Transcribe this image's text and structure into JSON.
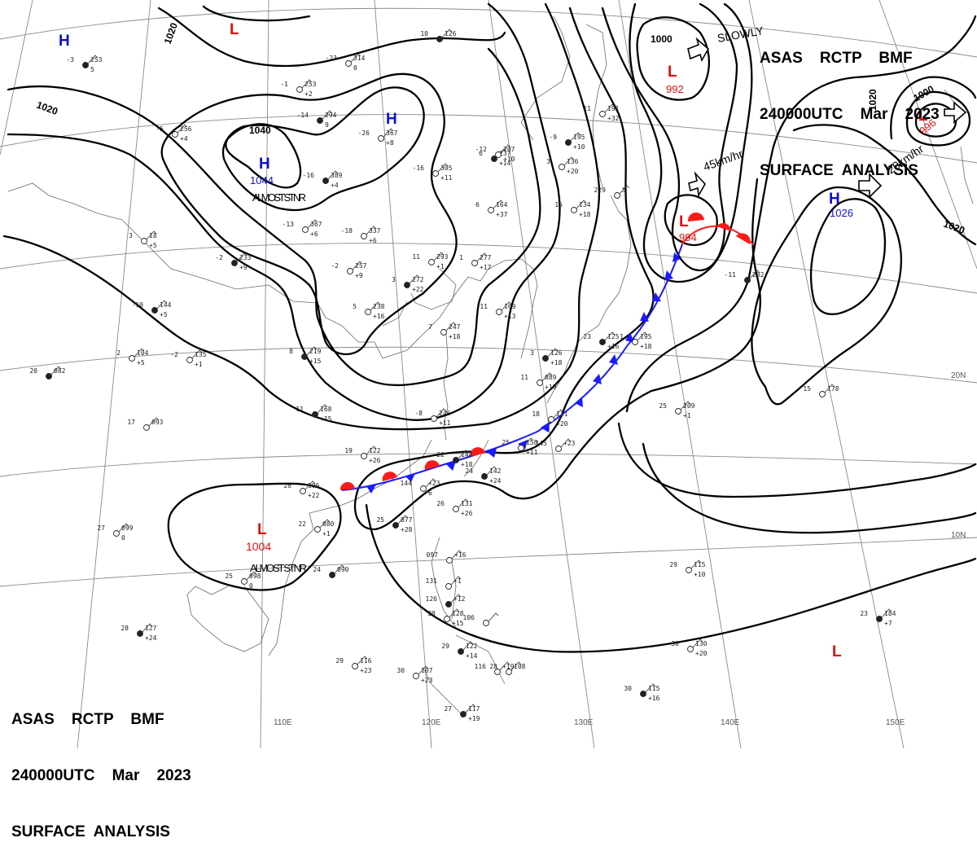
{
  "header_top": {
    "line1": "ASAS    RCTP    BMF",
    "line2": "240000UTC    Mar    2023",
    "line3": "SURFACE  ANALYSIS"
  },
  "header_bottom": {
    "line1": "ASAS    RCTP    BMF",
    "line2": "240000UTC    Mar    2023",
    "line3": "SURFACE  ANALYSIS"
  },
  "colors": {
    "high": "#1010d0",
    "low": "#e01010",
    "isobar": "#000000",
    "grid": "#888888",
    "coast": "#666666",
    "cold_front": "#1a1aff",
    "warm_front": "#ff1a1a"
  },
  "grid_labels": {
    "lon": [
      "110E",
      "120E",
      "130E",
      "140E",
      "150E"
    ],
    "lat": [
      "10N",
      "20N"
    ]
  },
  "isobar_labels": [
    "1020",
    "1020",
    "1040",
    "1000",
    "1020",
    "1000",
    "1020"
  ],
  "pressure_systems": [
    {
      "type": "H",
      "value": "1044",
      "note": "ALMOST STNR"
    },
    {
      "type": "H",
      "value": ""
    },
    {
      "type": "H",
      "value": ""
    },
    {
      "type": "H",
      "value": "1026"
    },
    {
      "type": "L",
      "value": ""
    },
    {
      "type": "L",
      "value": "992"
    },
    {
      "type": "L",
      "value": "996"
    },
    {
      "type": "L",
      "value": "994"
    },
    {
      "type": "L",
      "value": "1004",
      "note": "ALMOST STNR"
    },
    {
      "type": "L",
      "value": ""
    }
  ],
  "motions": [
    "SLOWLY",
    "45km/hr",
    "20km/hr"
  ],
  "stations": [
    [
      "-3",
      "253",
      "5"
    ],
    [
      "-5",
      "256",
      "+4"
    ],
    [
      "-1",
      "253",
      "+2"
    ],
    [
      "-14",
      "294",
      "9"
    ],
    [
      "-23",
      "314",
      "0"
    ],
    [
      "-26",
      "367",
      "+8"
    ],
    [
      "-16",
      "389",
      "+4"
    ],
    [
      "-13",
      "367",
      "+6"
    ],
    [
      "-18",
      "337",
      "+6"
    ],
    [
      "-2",
      "233",
      "+9"
    ],
    [
      "-2",
      "257",
      "+9"
    ],
    [
      "3",
      "18",
      "+5"
    ],
    [
      "-10",
      "144",
      "+5"
    ],
    [
      "2",
      "104",
      "+5"
    ],
    [
      "-2",
      "135",
      "+1"
    ],
    [
      "20",
      "082",
      ""
    ],
    [
      "17",
      "093",
      ""
    ],
    [
      "5",
      "238",
      "+16"
    ],
    [
      "8",
      "219",
      "+15"
    ],
    [
      "11",
      "293",
      "+1"
    ],
    [
      "1",
      "277",
      "+17"
    ],
    [
      "3",
      "272",
      "+22"
    ],
    [
      "7",
      "247",
      "+18"
    ],
    [
      "-16",
      "305",
      "+11"
    ],
    [
      "6",
      "237",
      "+14"
    ],
    [
      "6",
      "164",
      "+37"
    ],
    [
      "11",
      "169",
      "+13"
    ],
    [
      "11",
      "168",
      "+15"
    ],
    [
      "-8",
      "246",
      "+11"
    ],
    [
      "-12",
      "207",
      "+10"
    ],
    [
      "-9",
      "195",
      "+10"
    ],
    [
      "3",
      "136",
      "+20"
    ],
    [
      "15",
      "134",
      "+18"
    ],
    [
      "3",
      "126",
      "+18"
    ],
    [
      "11",
      "089",
      "+19"
    ],
    [
      "1",
      "195",
      "+18"
    ],
    [
      "23",
      "125",
      "+16"
    ],
    [
      "18",
      "131",
      "+20"
    ],
    [
      "19",
      "122",
      "+26"
    ],
    [
      "22",
      "144",
      "+18"
    ],
    [
      "25",
      "158",
      "+11"
    ],
    [
      "145",
      "+23",
      ""
    ],
    [
      "24",
      "142",
      "+24"
    ],
    [
      "144",
      "+23",
      "6"
    ],
    [
      "26",
      "131",
      "+26"
    ],
    [
      "25",
      "077",
      "+28"
    ],
    [
      "22",
      "080",
      "+1"
    ],
    [
      "26",
      "106",
      "+22"
    ],
    [
      "24",
      "090",
      ""
    ],
    [
      "27",
      "099",
      "0"
    ],
    [
      "25",
      "098",
      "0"
    ],
    [
      "28",
      "127",
      "+24"
    ],
    [
      "29",
      "116",
      "+23"
    ],
    [
      "30",
      "107",
      "+23"
    ],
    [
      "27",
      "117",
      "+19"
    ],
    [
      "097",
      "+16",
      ""
    ],
    [
      "131",
      "+1",
      ""
    ],
    [
      "126",
      "+12",
      ""
    ],
    [
      "28",
      "128",
      "+15"
    ],
    [
      "106",
      "",
      ""
    ],
    [
      "29",
      "122",
      "+14"
    ],
    [
      "116",
      "+19",
      ""
    ],
    [
      "28",
      "108",
      ""
    ],
    [
      "30",
      "115",
      "+16"
    ],
    [
      "30",
      "130",
      "+20"
    ],
    [
      "29",
      "115",
      "+10"
    ],
    [
      "23",
      "184",
      "+7"
    ],
    [
      "25",
      "209",
      "+1"
    ],
    [
      "15",
      "178",
      ""
    ],
    [
      "-11",
      "232",
      ""
    ],
    [
      "11",
      "191",
      "+32"
    ],
    [
      "229",
      "5",
      ""
    ],
    [
      "10",
      "126",
      ""
    ]
  ]
}
